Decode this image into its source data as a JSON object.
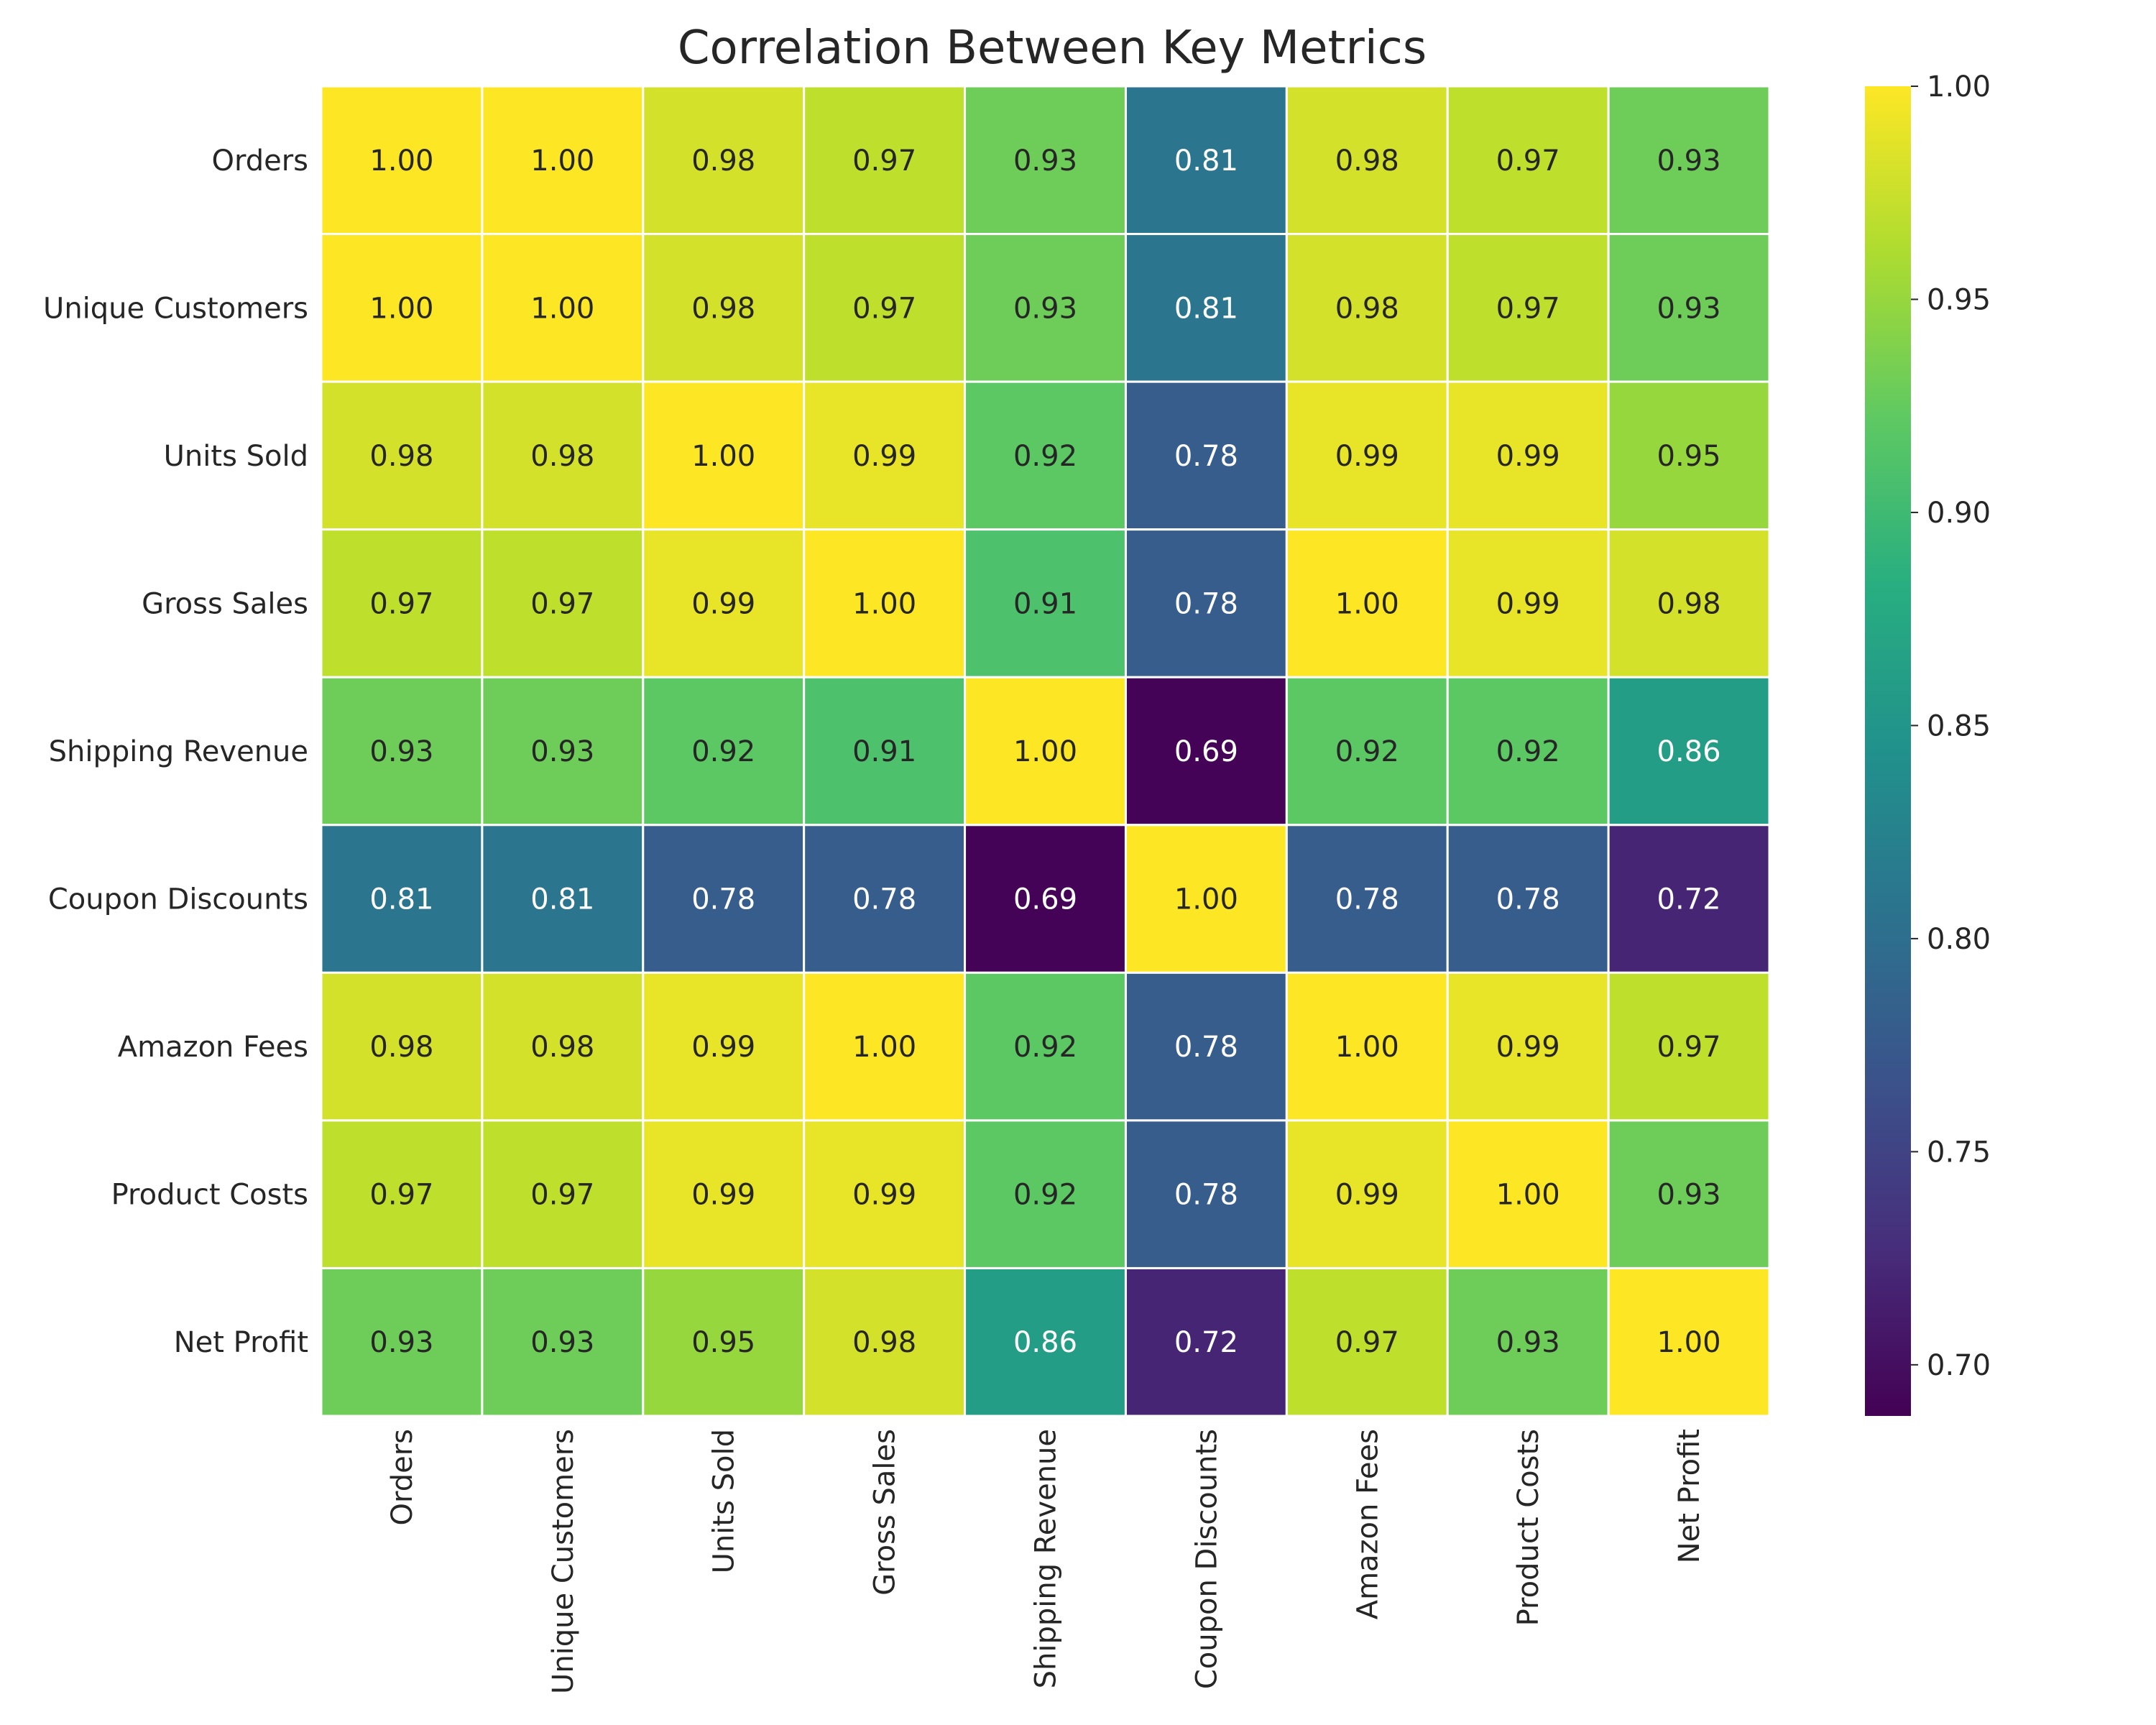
{
  "chart_data": {
    "type": "heatmap",
    "title": "Correlation Between Key Metrics",
    "xlabel": "",
    "ylabel": "",
    "categories": [
      "Orders",
      "Unique Customers",
      "Units Sold",
      "Gross Sales",
      "Shipping Revenue",
      "Coupon Discounts",
      "Amazon Fees",
      "Product Costs",
      "Net Profit"
    ],
    "values": [
      [
        1.0,
        1.0,
        0.98,
        0.97,
        0.93,
        0.81,
        0.98,
        0.97,
        0.93
      ],
      [
        1.0,
        1.0,
        0.98,
        0.97,
        0.93,
        0.81,
        0.98,
        0.97,
        0.93
      ],
      [
        0.98,
        0.98,
        1.0,
        0.99,
        0.92,
        0.78,
        0.99,
        0.99,
        0.95
      ],
      [
        0.97,
        0.97,
        0.99,
        1.0,
        0.91,
        0.78,
        1.0,
        0.99,
        0.98
      ],
      [
        0.93,
        0.93,
        0.92,
        0.91,
        1.0,
        0.69,
        0.92,
        0.92,
        0.86
      ],
      [
        0.81,
        0.81,
        0.78,
        0.78,
        0.69,
        1.0,
        0.78,
        0.78,
        0.72
      ],
      [
        0.98,
        0.98,
        0.99,
        1.0,
        0.92,
        0.78,
        1.0,
        0.99,
        0.97
      ],
      [
        0.97,
        0.97,
        0.99,
        0.99,
        0.92,
        0.78,
        0.99,
        1.0,
        0.93
      ],
      [
        0.93,
        0.93,
        0.95,
        0.98,
        0.86,
        0.72,
        0.97,
        0.93,
        1.0
      ]
    ],
    "annotation_format": "2 decimals",
    "colormap": "viridis",
    "colorbar": {
      "range": [
        0.688,
        1.0
      ],
      "ticks": [
        "0.70",
        "0.75",
        "0.80",
        "0.85",
        "0.90",
        "0.95",
        "1.00"
      ],
      "tick_values": [
        0.7,
        0.75,
        0.8,
        0.85,
        0.9,
        0.95,
        1.0
      ]
    },
    "grid_lines": "white"
  }
}
